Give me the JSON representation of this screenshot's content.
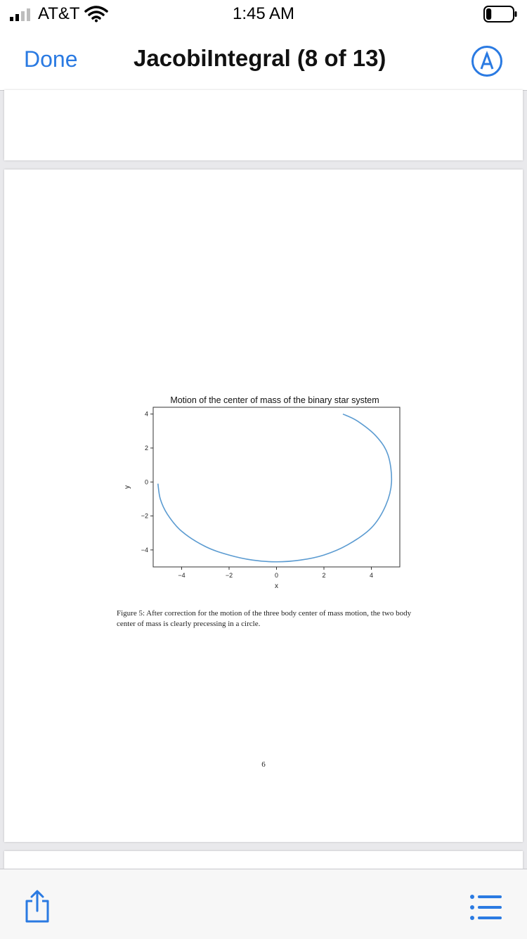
{
  "status": {
    "carrier": "AT&T",
    "time": "1:45 AM",
    "signal_bars": 2,
    "battery_level": 0.2,
    "icons": [
      "signal-icon",
      "wifi-icon",
      "battery-icon"
    ]
  },
  "nav": {
    "done_label": "Done",
    "title": "JacobiIntegral (8 of 13)",
    "markup_icon": "markup-pen-icon"
  },
  "page": {
    "caption": "Figure 5: After correction for the motion of the three body center of mass motion, the two body center of mass is clearly precessing in a circle.",
    "page_number": "6"
  },
  "chart_data": {
    "type": "line",
    "title": "Motion of the center of mass of the binary star system",
    "xlabel": "x",
    "ylabel": "y",
    "xlim": [
      -5.2,
      5.2
    ],
    "ylim": [
      -5.0,
      4.4
    ],
    "xticks": [
      -4,
      -2,
      0,
      2,
      4
    ],
    "yticks": [
      4,
      2,
      0,
      -2,
      -4
    ],
    "xtick_labels": [
      "−4",
      "−2",
      "0",
      "2",
      "4"
    ],
    "ytick_labels": [
      "4",
      "2",
      "0",
      "−2",
      "−4"
    ],
    "grid": false,
    "color": "#5b9bd1",
    "x": [
      -5.0,
      -4.9,
      -4.6,
      -4.0,
      -3.0,
      -2.0,
      -1.0,
      0.0,
      1.0,
      2.0,
      3.0,
      4.0,
      4.6,
      4.85,
      4.7,
      4.2,
      3.4,
      2.8
    ],
    "y": [
      -0.1,
      -1.0,
      -1.9,
      -2.9,
      -3.8,
      -4.3,
      -4.6,
      -4.7,
      -4.6,
      -4.3,
      -3.7,
      -2.7,
      -1.4,
      0.0,
      1.6,
      2.7,
      3.6,
      4.0
    ]
  },
  "toolbar": {
    "share_icon": "share-icon",
    "list_icon": "list-icon"
  }
}
